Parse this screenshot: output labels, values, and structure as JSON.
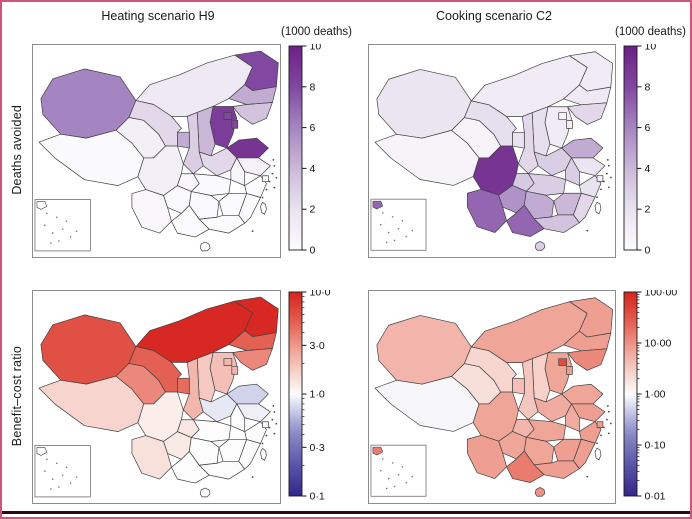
{
  "figure": {
    "border_color": "#d0557c",
    "bottom_rule_color": "#2d0b15",
    "description": "Four choropleth maps of Chinese provinces in a 2x2 grid"
  },
  "columns": [
    {
      "title": "Heating scenario H9"
    },
    {
      "title": "Cooking scenario C2"
    }
  ],
  "rows": [
    {
      "label": "Deaths avoided"
    },
    {
      "label": "Benefit–cost ratio"
    }
  ],
  "chart_data": [
    {
      "panel": "top-left",
      "type": "choropleth",
      "map": "China provinces",
      "scenario": "Heating scenario H9",
      "metric": "Deaths avoided",
      "colorbar": {
        "title": "(1000 deaths)",
        "scale": "linear",
        "domain": [
          0,
          10
        ],
        "tick_values": [
          0,
          2,
          4,
          6,
          8,
          10
        ],
        "tick_labels": [
          "0",
          "2",
          "4",
          "6",
          "8",
          "10"
        ],
        "palette": "purples"
      },
      "values": {
        "Xinjiang": 6,
        "Tibet": 0.2,
        "Qinghai": 1,
        "Gansu": 2.5,
        "Inner Mongolia": 1.5,
        "Heilongjiang": 8,
        "Jilin": 4.5,
        "Liaoning": 3.5,
        "Beijing": 8,
        "Tianjin": 8,
        "Hebei": 8.5,
        "Shanxi": 4,
        "Shandong": 9,
        "Henan": 2.5,
        "Shaanxi": 3,
        "Ningxia": 4.5,
        "Jiangsu": 0.8,
        "Shanghai": 0.2,
        "Anhui": 0.4,
        "Hubei": 0.2,
        "Chongqing": 0.3,
        "Sichuan": 1,
        "Guizhou": 0.2,
        "Yunnan": 0.3,
        "Hunan": 0.2,
        "Jiangxi": 0.1,
        "Zhejiang": 0.1,
        "Fujian": 0.1,
        "Guangdong": 0.1,
        "Guangxi": 0.1,
        "Hainan": 0.05
      }
    },
    {
      "panel": "top-right",
      "type": "choropleth",
      "map": "China provinces",
      "scenario": "Cooking scenario C2",
      "metric": "Deaths avoided",
      "colorbar": {
        "title": "(1000 deaths)",
        "scale": "linear",
        "domain": [
          0,
          10
        ],
        "tick_values": [
          0,
          2,
          4,
          6,
          8,
          10
        ],
        "tick_labels": [
          "0",
          "2",
          "4",
          "6",
          "8",
          "10"
        ],
        "palette": "purples"
      },
      "values": {
        "Xinjiang": 1.8,
        "Tibet": 0.6,
        "Qinghai": 0.6,
        "Gansu": 2.2,
        "Inner Mongolia": 1.3,
        "Heilongjiang": 1.3,
        "Jilin": 1.5,
        "Liaoning": 2.5,
        "Beijing": 0.8,
        "Tianjin": 1.2,
        "Hebei": 1.3,
        "Shanxi": 2.2,
        "Shandong": 4.5,
        "Henan": 3,
        "Shaanxi": 2.5,
        "Ningxia": 2,
        "Jiangsu": 1.8,
        "Shanghai": 0.8,
        "Anhui": 3,
        "Hubei": 3,
        "Chongqing": 3.2,
        "Sichuan": 9,
        "Guizhou": 5.5,
        "Yunnan": 7,
        "Hunan": 4.5,
        "Jiangxi": 4,
        "Zhejiang": 2,
        "Fujian": 2.5,
        "Guangdong": 3.5,
        "Guangxi": 7,
        "Hainan": 3
      }
    },
    {
      "panel": "bottom-left",
      "type": "choropleth",
      "map": "China provinces",
      "scenario": "Heating scenario H9",
      "metric": "Benefit–cost ratio",
      "colorbar": {
        "title": "",
        "scale": "log",
        "domain": [
          0.1,
          10
        ],
        "tick_values": [
          0.1,
          0.3,
          1,
          3,
          10
        ],
        "tick_labels": [
          "0·1",
          "0·3",
          "1·0",
          "3·0",
          "10·0"
        ],
        "palette": "red_blue"
      },
      "values": {
        "Xinjiang": 6,
        "Tibet": 1.6,
        "Qinghai": 3.5,
        "Gansu": 5,
        "Inner Mongolia": 9.5,
        "Heilongjiang": 9.5,
        "Jilin": 5,
        "Liaoning": 3.5,
        "Beijing": 2.2,
        "Tianjin": 2.2,
        "Hebei": 2,
        "Shanxi": 1.8,
        "Shandong": 0.72,
        "Henan": 0.85,
        "Shaanxi": 2.2,
        "Ningxia": 4.5,
        "Jiangsu": 0.9,
        "Shanghai": 1,
        "Anhui": 1,
        "Hubei": 1,
        "Chongqing": 1.3,
        "Sichuan": 1.2,
        "Guizhou": 1.25,
        "Yunnan": 1.4,
        "Hunan": 1,
        "Jiangxi": 1,
        "Zhejiang": 1,
        "Fujian": 1,
        "Guangdong": 1,
        "Guangxi": 1,
        "Hainan": 1
      }
    },
    {
      "panel": "bottom-right",
      "type": "choropleth",
      "map": "China provinces",
      "scenario": "Cooking scenario C2",
      "metric": "Benefit–cost ratio",
      "colorbar": {
        "title": "",
        "scale": "log",
        "domain": [
          0.01,
          100
        ],
        "tick_values": [
          0.01,
          0.1,
          1,
          10,
          100
        ],
        "tick_labels": [
          "0·01",
          "0·10",
          "1·00",
          "10·00",
          "100·00"
        ],
        "palette": "red_blue"
      },
      "values": {
        "Xinjiang": 5,
        "Tibet": 0.9,
        "Qinghai": 2,
        "Gansu": 2.5,
        "Inner Mongolia": 7,
        "Heilongjiang": 8,
        "Jilin": 8,
        "Liaoning": 12,
        "Beijing": 40,
        "Tianjin": 8,
        "Hebei": 7,
        "Shanxi": 2.8,
        "Shandong": 7,
        "Henan": 6,
        "Shaanxi": 3.5,
        "Ningxia": 4,
        "Jiangsu": 8,
        "Shanghai": 8,
        "Anhui": 6,
        "Hubei": 7,
        "Chongqing": 5,
        "Sichuan": 7,
        "Guizhou": 7,
        "Yunnan": 8,
        "Hunan": 7,
        "Jiangxi": 8,
        "Zhejiang": 8,
        "Fujian": 8,
        "Guangdong": 8,
        "Guangxi": 15,
        "Hainan": 10
      }
    }
  ],
  "palettes": {
    "purples_top_color": "#6b2086",
    "purples_bottom_color": "#fcfbfd",
    "diverging_high_color": "#d62420",
    "diverging_mid_color": "#fdfcfc",
    "diverging_low_color": "#33268a"
  }
}
